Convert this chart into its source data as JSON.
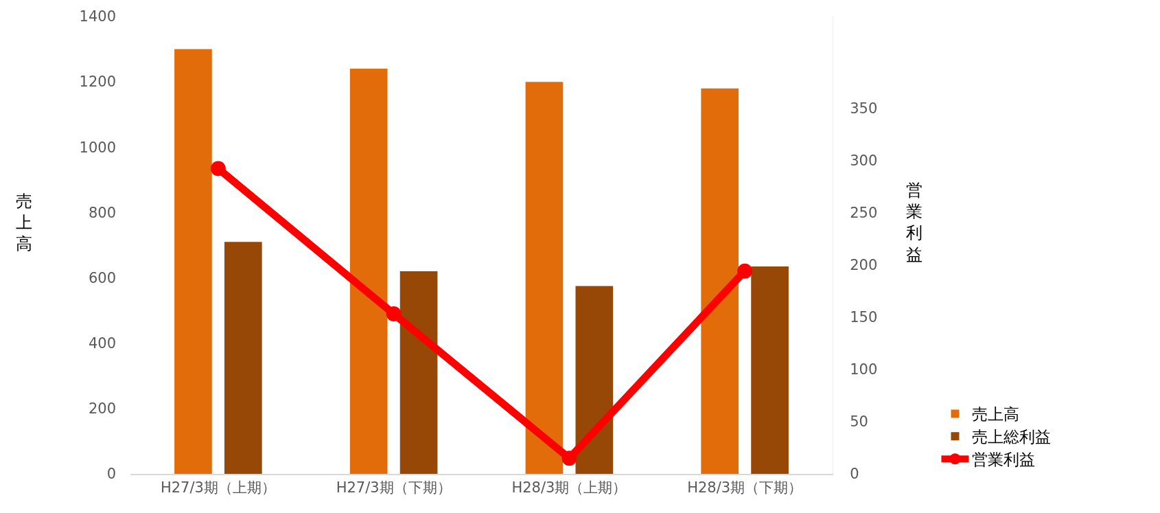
{
  "chart_data": {
    "type": "bar",
    "categories": [
      "H27/3期（上期）",
      "H27/3期（下期）",
      "H28/3期（上期）",
      "H28/3期（下期）"
    ],
    "series": [
      {
        "name": "売上高",
        "color": "#e36c0a",
        "values": [
          1300,
          1240,
          1200,
          1180
        ]
      },
      {
        "name": "売上総利益",
        "color": "#974706",
        "values": [
          710,
          620,
          575,
          635
        ]
      },
      {
        "name": "営業利益",
        "type": "line",
        "axis": "y2",
        "color": "#ff0000",
        "values": [
          292,
          153,
          15,
          194
        ],
        "marker": "circle",
        "line_style": "solid"
      }
    ],
    "ylabel": "売上高",
    "y2label": "営業利益",
    "ylim": [
      0,
      1400
    ],
    "yticks": [
      0,
      200,
      400,
      600,
      800,
      1000,
      1200,
      1400
    ],
    "y2lim": [
      0,
      437.5
    ],
    "y2ticks": [
      0,
      50,
      100,
      150,
      200,
      250,
      300,
      350
    ],
    "grid": false,
    "legend": "bottom right"
  }
}
